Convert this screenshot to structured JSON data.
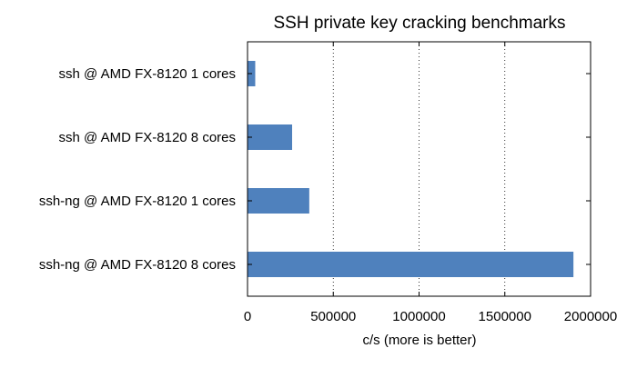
{
  "chart_data": {
    "type": "bar",
    "orientation": "horizontal",
    "title": "SSH private key cracking benchmarks",
    "xlabel": "c/s (more is better)",
    "ylabel": "",
    "categories": [
      "ssh @ AMD FX-8120 1 cores",
      "ssh @ AMD FX-8120 8 cores",
      "ssh-ng @ AMD FX-8120 1 cores",
      "ssh-ng @ AMD FX-8120 8 cores"
    ],
    "values": [
      45000,
      260000,
      360000,
      1900000
    ],
    "xlim": [
      0,
      2000000
    ],
    "xticks": [
      0,
      500000,
      1000000,
      1500000,
      2000000
    ],
    "xtick_labels": [
      "0",
      "500000",
      "1000000",
      "1500000",
      "2000000"
    ],
    "grid": "x-dotted",
    "legend": "none",
    "bar_color": "#4f81bd"
  }
}
